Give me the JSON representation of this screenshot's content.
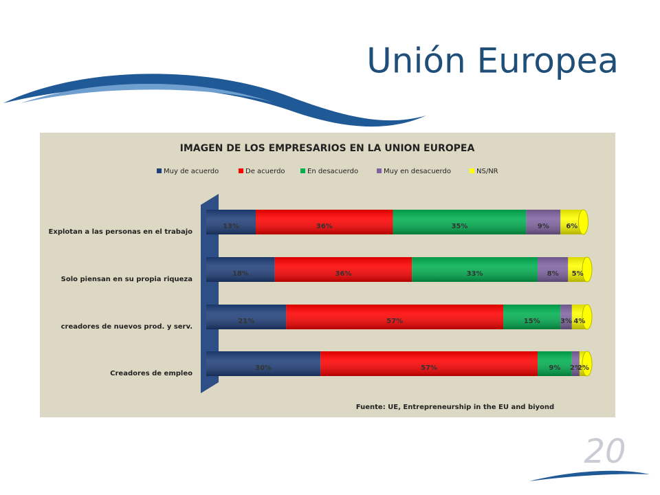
{
  "slide_title": "Unión Europea",
  "chart_data": {
    "type": "stacked_bar_horizontal",
    "title": "IMAGEN DE LOS EMPRESARIOS EN LA UNION EUROPEA",
    "categories": [
      "Explotan a las personas en el trabajo",
      "Solo piensan en su propia riqueza",
      "creadores de nuevos prod. y serv.",
      "Creadores de empleo"
    ],
    "series": [
      {
        "name": "Muy de acuerdo",
        "color": "#1f3f7a",
        "values": [
          13,
          18,
          21,
          30
        ],
        "value_labels": [
          "13%",
          "18%",
          "21%",
          "30%"
        ]
      },
      {
        "name": "De acuerdo",
        "color": "#ff0000",
        "values": [
          36,
          36,
          57,
          57
        ],
        "value_labels": [
          "36%",
          "36%",
          "57%",
          "57%"
        ]
      },
      {
        "name": "En desacuerdo",
        "color": "#00b050",
        "values": [
          35,
          33,
          15,
          9
        ],
        "value_labels": [
          "35%",
          "33%",
          "15%",
          "9%"
        ]
      },
      {
        "name": "Muy en desacuerdo",
        "color": "#8064a2",
        "values": [
          9,
          8,
          3,
          2
        ],
        "value_labels": [
          "9%",
          "8%",
          "3%",
          "2%"
        ]
      },
      {
        "name": "NS/NR",
        "color": "#ffff00",
        "values": [
          6,
          5,
          4,
          2
        ],
        "value_labels": [
          "6%",
          "5%",
          "4%",
          "2%"
        ]
      }
    ],
    "xlim": [
      0,
      100
    ],
    "legend": "top",
    "source": "Fuente: UE, Entrepreneurship in the EU and biyond"
  }
}
